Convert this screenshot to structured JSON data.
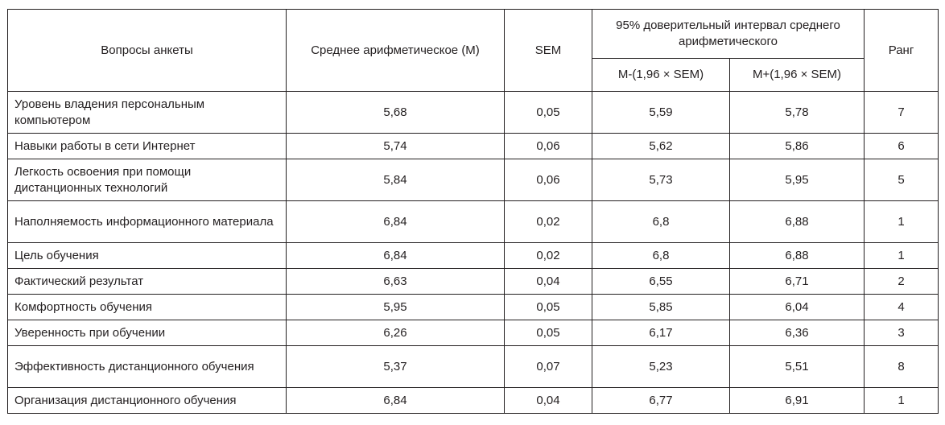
{
  "table": {
    "headers": {
      "question": "Вопросы анкеты",
      "mean": "Среднее арифметическое (M)",
      "sem": "SEM",
      "ci_group": "95% доверительный интервал среднего арифметического",
      "ci_lower": "M-(1,96 × SEM)",
      "ci_upper": "M+(1,96 × SEM)",
      "rank": "Ранг"
    },
    "rows": [
      {
        "question": "Уровень владения персональным компьютером",
        "mean": "5,68",
        "sem": "0,05",
        "ci_lower": "5,59",
        "ci_upper": "5,78",
        "rank": "7"
      },
      {
        "question": "Навыки работы в сети Интернет",
        "mean": "5,74",
        "sem": "0,06",
        "ci_lower": "5,62",
        "ci_upper": "5,86",
        "rank": "6"
      },
      {
        "question": "Легкость освоения при помощи дистанционных технологий",
        "mean": "5,84",
        "sem": "0,06",
        "ci_lower": "5,73",
        "ci_upper": "5,95",
        "rank": "5"
      },
      {
        "question": "Наполняемость информационного материала",
        "mean": "6,84",
        "sem": "0,02",
        "ci_lower": "6,8",
        "ci_upper": "6,88",
        "rank": "1"
      },
      {
        "question": "Цель обучения",
        "mean": "6,84",
        "sem": "0,02",
        "ci_lower": "6,8",
        "ci_upper": "6,88",
        "rank": "1"
      },
      {
        "question": "Фактический результат",
        "mean": "6,63",
        "sem": "0,04",
        "ci_lower": "6,55",
        "ci_upper": "6,71",
        "rank": "2"
      },
      {
        "question": "Комфортность обучения",
        "mean": "5,95",
        "sem": "0,05",
        "ci_lower": "5,85",
        "ci_upper": "6,04",
        "rank": "4"
      },
      {
        "question": "Уверенность при обучении",
        "mean": "6,26",
        "sem": "0,05",
        "ci_lower": "6,17",
        "ci_upper": "6,36",
        "rank": "3"
      },
      {
        "question": "Эффективность дистанционного обучения",
        "mean": "5,37",
        "sem": "0,07",
        "ci_lower": "5,23",
        "ci_upper": "5,51",
        "rank": "8"
      },
      {
        "question": "Организация дистанционного обучения",
        "mean": "6,84",
        "sem": "0,04",
        "ci_lower": "6,77",
        "ci_upper": "6,91",
        "rank": "1"
      }
    ]
  }
}
